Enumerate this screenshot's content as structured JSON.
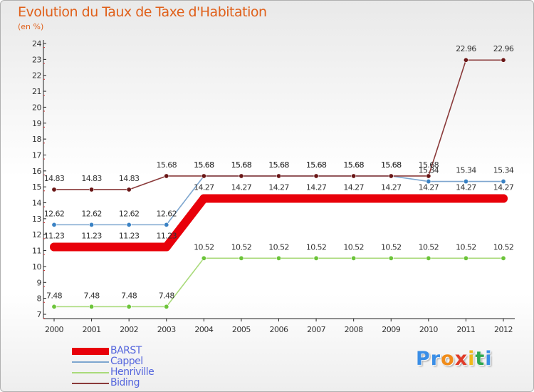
{
  "header": {
    "title": "Evolution du Taux de Taxe d'Habitation",
    "subtitle": "(en %)"
  },
  "logo": {
    "letters": [
      "P",
      "r",
      "o",
      "x",
      "i",
      "t",
      "i"
    ],
    "colors": [
      "#3a8ee6",
      "#3a8ee6",
      "#f08c1a",
      "#e03c2a",
      "#f0b91a",
      "#2fa84f",
      "#3a8ee6"
    ]
  },
  "chart_data": {
    "type": "line",
    "title": "Evolution du Taux de Taxe d'Habitation",
    "ylabel": "(en %)",
    "xlabel": "",
    "x": [
      "2000",
      "2001",
      "2002",
      "2003",
      "2004",
      "2005",
      "2006",
      "2007",
      "2008",
      "2009",
      "2010",
      "2011",
      "2012"
    ],
    "ylim": [
      7,
      24
    ],
    "yticks": [
      "7",
      "8",
      "9",
      "10",
      "11",
      "12",
      "13",
      "14",
      "15",
      "16",
      "17",
      "18",
      "19",
      "20",
      "21",
      "22",
      "23",
      "24"
    ],
    "grid": false,
    "legend_position": "bottom-left",
    "series": [
      {
        "name": "BARST",
        "color": "#e8000a",
        "marker": "#e8000a",
        "style": "thick",
        "values": [
          11.23,
          11.23,
          11.23,
          11.23,
          14.27,
          14.27,
          14.27,
          14.27,
          14.27,
          14.27,
          14.27,
          14.27,
          14.27
        ],
        "labels": [
          "11.23",
          "11.23",
          "11.23",
          "11.23",
          "14.27",
          "14.27",
          "14.27",
          "14.27",
          "14.27",
          "14.27",
          "14.27",
          "14.27",
          "14.27"
        ]
      },
      {
        "name": "Cappel",
        "color": "#7ea6cf",
        "marker": "#3a82c4",
        "style": "thin",
        "values": [
          12.62,
          12.62,
          12.62,
          12.62,
          15.68,
          15.68,
          15.68,
          15.68,
          15.68,
          15.68,
          15.34,
          15.34,
          15.34
        ],
        "labels": [
          "12.62",
          "12.62",
          "12.62",
          "12.62",
          "15.68",
          "15.68",
          "15.68",
          "15.68",
          "15.68",
          "15.68",
          "15.34",
          "15.34",
          "15.34"
        ]
      },
      {
        "name": "Henriville",
        "color": "#a9da7a",
        "marker": "#6cc43a",
        "style": "thin",
        "values": [
          7.48,
          7.48,
          7.48,
          7.48,
          10.52,
          10.52,
          10.52,
          10.52,
          10.52,
          10.52,
          10.52,
          10.52,
          10.52
        ],
        "labels": [
          "7.48",
          "7.48",
          "7.48",
          "7.48",
          "10.52",
          "10.52",
          "10.52",
          "10.52",
          "10.52",
          "10.52",
          "10.52",
          "10.52",
          "10.52"
        ]
      },
      {
        "name": "Biding",
        "color": "#8a3a3a",
        "marker": "#6a1616",
        "style": "thin",
        "values": [
          14.83,
          14.83,
          14.83,
          15.68,
          15.68,
          15.68,
          15.68,
          15.68,
          15.68,
          15.68,
          15.68,
          22.96,
          22.96
        ],
        "labels": [
          "14.83",
          "14.83",
          "14.83",
          "15.68",
          "15.68",
          "15.68",
          "15.68",
          "15.68",
          "15.68",
          "15.68",
          "15.68",
          "22.96",
          "22.96"
        ]
      }
    ]
  }
}
